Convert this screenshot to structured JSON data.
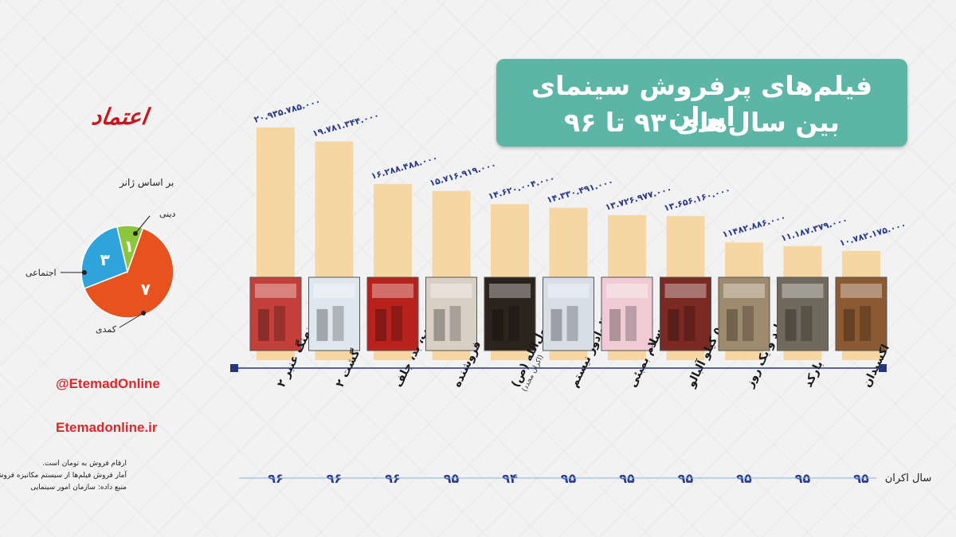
{
  "header": {
    "title_line1": "فیلم‌های پرفروش سینمای ایران",
    "title_line2": "بین سال‌های ۹۳ تا ۹۶"
  },
  "logo": {
    "text": "اعتماد"
  },
  "genre": {
    "title": "بر اساس ژانر",
    "labels": {
      "religious": "دینی",
      "social": "اجتماعی",
      "comedy": "کمدی"
    },
    "values": {
      "religious": "۱",
      "social": "۳",
      "comedy": "۷"
    },
    "counts": [
      {
        "key": "comedy",
        "value": 7,
        "color": "#e8521f"
      },
      {
        "key": "social",
        "value": 3,
        "color": "#2fa3dc"
      },
      {
        "key": "religious",
        "value": 1,
        "color": "#8cc63f"
      }
    ]
  },
  "social": {
    "handle": "@EtemadOnline",
    "site": "Etemadonline.ir"
  },
  "notes": {
    "line1": "ارقام فروش به تومان است.",
    "line2": "آمار فروش فیلم‌ها از سیستم مکانیزه فروش سینماهاست.",
    "line3": "منبع داده: سازمان امور سینمایی"
  },
  "year_axis_label": "سال اکران",
  "colors": {
    "bar": "#f6d7a4",
    "value_text": "#2c3a8c",
    "axis": "#25367d",
    "title_bg": "#5db6a5"
  },
  "chart_data": {
    "type": "bar",
    "title": "فیلم‌های پرفروش سینمای ایران بین سال‌های ۹۳ تا ۹۶",
    "categories": [
      "نهنگ عنبر ۲",
      "گشت ۲",
      "خوب، بد، جلف",
      "فروشنده",
      "محمد رسول‌الله (ص)",
      "من سالوادور نیستم",
      "سلام بمبئی",
      "۵۰ کیلو آلبالو",
      "ابد و یک روز",
      "بارکد",
      "اکسیدان"
    ],
    "category_sublabels": [
      "",
      "",
      "",
      "",
      "(اکران مجدد)",
      "",
      "",
      "",
      "",
      "",
      ""
    ],
    "values": [
      20935785000,
      19781344000,
      16288488000,
      15716919000,
      14620004000,
      14330491000,
      13726977000,
      13656160000,
      11482886000,
      11187379000,
      10782175000
    ],
    "value_labels": [
      "۲۰.۹۳۵.۷۸۵.۰۰۰",
      "۱۹.۷۸۱.۳۴۴.۰۰۰",
      "۱۶.۲۸۸.۴۸۸.۰۰۰",
      "۱۵.۷۱۶.۹۱۹.۰۰۰",
      "۱۴.۶۲۰.۰۰۴.۰۰۰",
      "۱۴.۳۳۰.۴۹۱.۰۰۰",
      "۱۳.۷۲۶.۹۷۷.۰۰۰",
      "۱۳.۶۵۶.۱۶۰.۰۰۰",
      "۱۱۴۸۲.۸۸۶.۰۰۰",
      "۱۱.۱۸۷.۳۷۹.۰۰۰",
      "۱۰.۷۸۲.۱۷۵.۰۰۰"
    ],
    "years": [
      "۹۶",
      "۹۶",
      "۹۶",
      "۹۵",
      "۹۴",
      "۹۵",
      "۹۵",
      "۹۵",
      "۹۵",
      "۹۵",
      "۹۵"
    ],
    "ylim": [
      0,
      21000000000
    ],
    "poster_colors": [
      "#c33f3a",
      "#dfe7ee",
      "#b8221c",
      "#d9cfc4",
      "#2b241d",
      "#d8dde8",
      "#f0cbd6",
      "#7a2a22",
      "#9e8a6e",
      "#6f6a5d",
      "#8b5a32"
    ]
  }
}
